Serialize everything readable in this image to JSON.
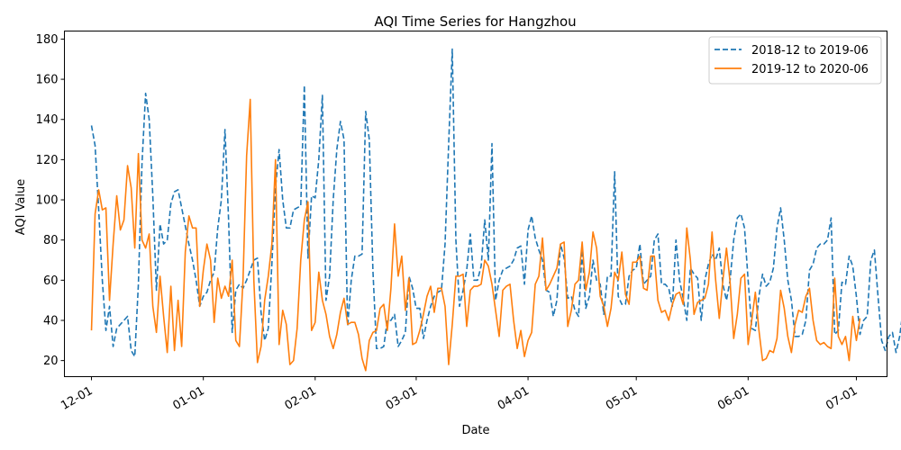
{
  "chart_data": {
    "type": "line",
    "title": "AQI Time Series for Hangzhou",
    "xlabel": "Date",
    "ylabel": "AQI Value",
    "x_ticks": [
      "12-01",
      "01-01",
      "02-01",
      "03-01",
      "04-01",
      "05-01",
      "06-01",
      "07-01"
    ],
    "y_ticks": [
      20,
      40,
      60,
      80,
      100,
      120,
      140,
      160,
      180
    ],
    "ylim": [
      12,
      184
    ],
    "xlim_days": [
      -7.5,
      220.5
    ],
    "grid": false,
    "legend_position": "top-right",
    "series": [
      {
        "name": "2018-12 to 2019-06",
        "color": "#1f77b4",
        "dash": "dashed",
        "start_date": "2018-12-01",
        "values": [
          137,
          127,
          95,
          60,
          35,
          47,
          27,
          36,
          38,
          40,
          42,
          25,
          22,
          58,
          118,
          153,
          140,
          102,
          55,
          88,
          78,
          80,
          98,
          104,
          105,
          96,
          87,
          78,
          70,
          60,
          47,
          52,
          54,
          60,
          64,
          86,
          100,
          135,
          90,
          34,
          55,
          58,
          56,
          60,
          65,
          70,
          71,
          44,
          30,
          36,
          68,
          106,
          125,
          100,
          86,
          86,
          95,
          96,
          97,
          157,
          71,
          102,
          101,
          120,
          152,
          50,
          62,
          100,
          125,
          139,
          130,
          37,
          60,
          72,
          72,
          73,
          144,
          130,
          65,
          26,
          26,
          27,
          40,
          40,
          43,
          27,
          30,
          34,
          62,
          56,
          46,
          46,
          31,
          40,
          47,
          52,
          54,
          55,
          78,
          128,
          175,
          80,
          47,
          55,
          65,
          83,
          60,
          60,
          67,
          90,
          70,
          128,
          50,
          60,
          65,
          66,
          67,
          70,
          76,
          77,
          58,
          85,
          92,
          81,
          75,
          70,
          55,
          54,
          42,
          50,
          78,
          71,
          51,
          52,
          45,
          42,
          75,
          46,
          52,
          70,
          60,
          58,
          43,
          62,
          62,
          114,
          52,
          48,
          48,
          62,
          65,
          66,
          78,
          58,
          60,
          62,
          80,
          83,
          58,
          58,
          56,
          47,
          80,
          60,
          51,
          40,
          66,
          63,
          61,
          40,
          60,
          68,
          73,
          70,
          76,
          58,
          50,
          60,
          80,
          91,
          93,
          86,
          60,
          36,
          35,
          52,
          63,
          57,
          59,
          66,
          86,
          96,
          80,
          60,
          50,
          32,
          32,
          33,
          40,
          65,
          68,
          76,
          78,
          78,
          80,
          91,
          33,
          35,
          59,
          58,
          72,
          67,
          52,
          33,
          40,
          42,
          70,
          75,
          52,
          30,
          25,
          32,
          34,
          24,
          32,
          46,
          48,
          41,
          34,
          77,
          74,
          42,
          40,
          42
        ]
      },
      {
        "name": "2019-12 to 2020-06",
        "color": "#ff7f0e",
        "dash": "solid",
        "start_date": "2019-12-01",
        "values": [
          35,
          93,
          105,
          95,
          96,
          50,
          78,
          102,
          85,
          90,
          117,
          106,
          76,
          123,
          80,
          76,
          83,
          47,
          34,
          62,
          42,
          24,
          57,
          25,
          50,
          27,
          74,
          92,
          86,
          86,
          47,
          65,
          78,
          70,
          39,
          61,
          51,
          57,
          52,
          70,
          30,
          27,
          60,
          122,
          150,
          60,
          19,
          27,
          50,
          62,
          78,
          120,
          28,
          45,
          38,
          18,
          20,
          36,
          70,
          90,
          99,
          35,
          39,
          64,
          50,
          43,
          32,
          26,
          33,
          44,
          51,
          38,
          39,
          39,
          33,
          21,
          15,
          30,
          34,
          35,
          46,
          48,
          35,
          56,
          88,
          62,
          72,
          45,
          61,
          28,
          29,
          35,
          43,
          52,
          57,
          44,
          56,
          56,
          47,
          18,
          38,
          62,
          62,
          63,
          37,
          55,
          57,
          57,
          58,
          70,
          67,
          58,
          45,
          32,
          55,
          57,
          58,
          40,
          26,
          35,
          22,
          30,
          34,
          58,
          62,
          81,
          55,
          58,
          62,
          66,
          78,
          79,
          37,
          45,
          58,
          60,
          79,
          55,
          64,
          84,
          76,
          52,
          47,
          37,
          46,
          64,
          60,
          74,
          53,
          48,
          69,
          69,
          72,
          56,
          55,
          72,
          72,
          50,
          44,
          45,
          40,
          48,
          53,
          54,
          48,
          86,
          70,
          43,
          49,
          50,
          51,
          58,
          84,
          60,
          41,
          60,
          76,
          59,
          31,
          43,
          61,
          63,
          28,
          40,
          54,
          35,
          20,
          21,
          25,
          24,
          31,
          55,
          46,
          32,
          24,
          38,
          45,
          44,
          52,
          56,
          40,
          30,
          28,
          29,
          27,
          26,
          61,
          32,
          28,
          32,
          20,
          42,
          30,
          41
        ]
      }
    ]
  }
}
